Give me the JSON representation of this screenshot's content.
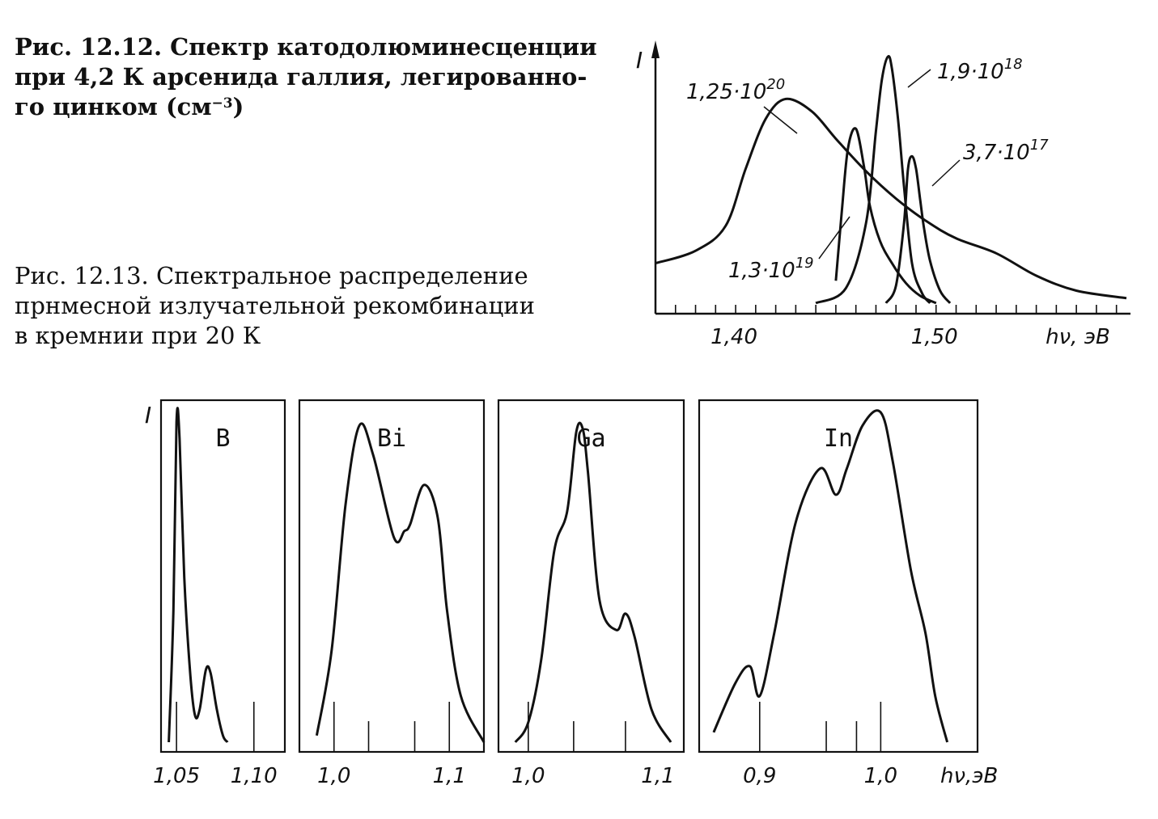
{
  "captions": {
    "fig12": {
      "line1": "Рис. 12.12. Спектр катодолюминесценции",
      "line2": "при 4,2 К арсенида галлия, легированно-",
      "line3_text": "го цинком (см",
      "line3_sup": "−3",
      "line3_end": ")"
    },
    "fig13": {
      "line1": "Рис. 12.13. Спектральное распределение",
      "line2": "прнмесной излучательной рекомбинации",
      "line3": "в кремнии при 20 К"
    }
  },
  "chart_data": [
    {
      "type": "line",
      "id": "fig-12-12",
      "ylabel": "I",
      "xlabel": "hν, эВ",
      "xlim": [
        1.36,
        1.597
      ],
      "ylim": [
        0,
        1
      ],
      "x_ticks": [
        {
          "value": 1.4,
          "label": "1,40"
        },
        {
          "value": 1.5,
          "label": "1,50"
        }
      ],
      "minor_tick_step": 0.01,
      "series": [
        {
          "name": "1,25·10^20",
          "label_base": "1,25·10",
          "label_exp": "20",
          "x": [
            1.36,
            1.38,
            1.395,
            1.405,
            1.415,
            1.425,
            1.438,
            1.45,
            1.465,
            1.48,
            1.495,
            1.51,
            1.53,
            1.55,
            1.57,
            1.595
          ],
          "y": [
            0.17,
            0.22,
            0.32,
            0.55,
            0.75,
            0.83,
            0.78,
            0.67,
            0.54,
            0.43,
            0.34,
            0.27,
            0.21,
            0.12,
            0.06,
            0.03
          ]
        },
        {
          "name": "1,3·10^19",
          "label_base": "1,3·10",
          "label_exp": "19",
          "x": [
            1.45,
            1.453,
            1.456,
            1.46,
            1.464,
            1.467,
            1.472,
            1.478,
            1.485,
            1.492,
            1.5
          ],
          "y": [
            0.1,
            0.38,
            0.63,
            0.71,
            0.56,
            0.4,
            0.26,
            0.17,
            0.09,
            0.04,
            0.01
          ]
        },
        {
          "name": "1,9·10^18",
          "label_base": "1,9·10",
          "label_exp": "18",
          "x": [
            1.44,
            1.455,
            1.465,
            1.47,
            1.473,
            1.476,
            1.478,
            1.481,
            1.484,
            1.488,
            1.493,
            1.497
          ],
          "y": [
            0.01,
            0.07,
            0.33,
            0.7,
            0.91,
            1.0,
            0.95,
            0.75,
            0.48,
            0.17,
            0.05,
            0.01
          ]
        },
        {
          "name": "3,7·10^17",
          "label_base": "3,7·10",
          "label_exp": "17",
          "x": [
            1.475,
            1.48,
            1.484,
            1.486,
            1.488,
            1.49,
            1.492,
            1.494,
            1.497,
            1.502,
            1.507
          ],
          "y": [
            0.01,
            0.08,
            0.33,
            0.55,
            0.6,
            0.55,
            0.43,
            0.31,
            0.18,
            0.06,
            0.01
          ]
        }
      ]
    },
    {
      "type": "line",
      "id": "fig-12-13",
      "ylabel": "I",
      "xlabel": "hν,эВ",
      "panels": [
        {
          "name": "B",
          "xlim": [
            1.04,
            1.12
          ],
          "x_ticks": [
            {
              "value": 1.05,
              "label": "1,05"
            },
            {
              "value": 1.1,
              "label": "1,10"
            }
          ],
          "minor_ticks": [
            1.05,
            1.1
          ],
          "x": [
            1.045,
            1.048,
            1.05,
            1.052,
            1.055,
            1.059,
            1.062,
            1.065,
            1.069,
            1.072,
            1.076,
            1.08,
            1.083
          ],
          "y": [
            0.0,
            0.4,
            0.97,
            0.92,
            0.5,
            0.2,
            0.08,
            0.1,
            0.22,
            0.21,
            0.1,
            0.02,
            0.0
          ]
        },
        {
          "name": "Bi",
          "xlim": [
            0.97,
            1.13
          ],
          "x_ticks": [
            {
              "value": 1.0,
              "label": "1,0"
            },
            {
              "value": 1.1,
              "label": "1,1"
            }
          ],
          "minor_ticks": [
            1.0,
            1.03,
            1.07,
            1.1
          ],
          "x": [
            0.985,
            0.998,
            1.01,
            1.022,
            1.034,
            1.052,
            1.061,
            1.066,
            1.078,
            1.09,
            1.098,
            1.11,
            1.13
          ],
          "y": [
            0.02,
            0.28,
            0.72,
            0.96,
            0.87,
            0.62,
            0.64,
            0.66,
            0.78,
            0.68,
            0.4,
            0.14,
            0.0
          ]
        },
        {
          "name": "Ga",
          "xlim": [
            0.977,
            1.12
          ],
          "x_ticks": [
            {
              "value": 1.0,
              "label": "1,0"
            },
            {
              "value": 1.1,
              "label": "1,1"
            }
          ],
          "minor_ticks": [
            1.0,
            1.035,
            1.075
          ],
          "x": [
            0.99,
            1.0,
            1.01,
            1.02,
            1.03,
            1.037,
            1.042,
            1.046,
            1.055,
            1.068,
            1.075,
            1.082,
            1.095,
            1.11
          ],
          "y": [
            0.0,
            0.06,
            0.25,
            0.58,
            0.7,
            0.94,
            0.95,
            0.82,
            0.43,
            0.34,
            0.39,
            0.32,
            0.1,
            0.0
          ]
        },
        {
          "name": "In",
          "xlim": [
            0.85,
            1.08
          ],
          "x_ticks": [
            {
              "value": 0.9,
              "label": "0,9"
            },
            {
              "value": 1.0,
              "label": "1,0"
            }
          ],
          "minor_ticks": [
            0.9,
            0.955,
            0.98,
            1.0
          ],
          "x": [
            0.862,
            0.88,
            0.892,
            0.9,
            0.912,
            0.93,
            0.95,
            0.963,
            0.972,
            0.985,
            1.0,
            1.01,
            1.025,
            1.037,
            1.045,
            1.055
          ],
          "y": [
            0.03,
            0.18,
            0.23,
            0.14,
            0.33,
            0.67,
            0.83,
            0.75,
            0.83,
            0.96,
            1.0,
            0.85,
            0.52,
            0.33,
            0.14,
            0.0
          ]
        }
      ]
    }
  ]
}
